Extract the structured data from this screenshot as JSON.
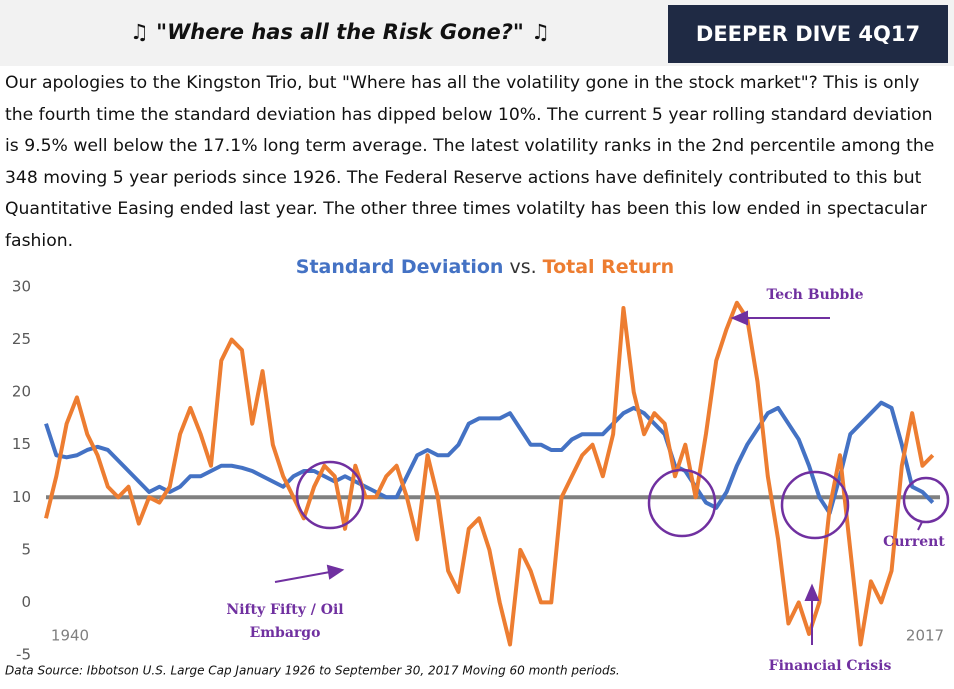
{
  "header": {
    "title": "♫ \"Where has all the Risk Gone?\" ♫",
    "badge": "DEEPER DIVE 4Q17"
  },
  "body_lines": [
    "Our apologies to the Kingston Trio, but \"Where has all the volatility gone in the stock market\"? This is only",
    "the fourth time the standard deviation has dipped below 10%. The current 5 year rolling standard deviation",
    "is 9.5% well below the 17.1% long term average. The latest volatility ranks in the 2nd percentile among the",
    "348 moving 5 year periods since 1926. The Federal Reserve actions have definitely contributed to this but",
    "Quantitative Easing ended last year. The other three times volatilty has been this low ended in spectacular",
    "fashion."
  ],
  "chart_data": {
    "type": "line",
    "title_joiner": "vs.",
    "x": [
      1931,
      1932,
      1933,
      1934,
      1935,
      1936,
      1937,
      1938,
      1939,
      1940,
      1941,
      1942,
      1943,
      1944,
      1945,
      1946,
      1947,
      1948,
      1949,
      1950,
      1951,
      1952,
      1953,
      1954,
      1955,
      1956,
      1957,
      1958,
      1959,
      1960,
      1961,
      1962,
      1963,
      1964,
      1965,
      1966,
      1967,
      1968,
      1969,
      1970,
      1971,
      1972,
      1973,
      1974,
      1975,
      1976,
      1977,
      1978,
      1979,
      1980,
      1981,
      1982,
      1983,
      1984,
      1985,
      1986,
      1987,
      1988,
      1989,
      1990,
      1991,
      1992,
      1993,
      1994,
      1995,
      1996,
      1997,
      1998,
      1999,
      2000,
      2001,
      2002,
      2003,
      2004,
      2005,
      2006,
      2007,
      2008,
      2009,
      2010,
      2011,
      2012,
      2013,
      2014,
      2015,
      2016,
      2017
    ],
    "xlim": [
      1931,
      2017.7
    ],
    "corner_labels": [
      "1940",
      "2017"
    ],
    "series": [
      {
        "name": "Standard Deviation",
        "color": "#4472c4",
        "values": [
          17,
          14,
          13.8,
          14,
          14.5,
          14.8,
          14.5,
          13.5,
          12.5,
          11.5,
          10.5,
          11,
          10.5,
          11,
          12,
          12,
          12.5,
          13,
          13,
          12.8,
          12.5,
          12,
          11.5,
          11,
          12,
          12.5,
          12.5,
          12,
          11.5,
          12,
          11.5,
          11,
          10.5,
          10,
          10,
          12,
          14,
          14.5,
          14,
          14,
          15,
          17,
          17.5,
          17.5,
          17.5,
          18,
          16.5,
          15,
          15,
          14.5,
          14.5,
          15.5,
          16,
          16,
          16,
          17,
          18,
          18.5,
          18,
          17,
          16,
          13,
          12.5,
          11,
          9.5,
          9,
          10.5,
          13,
          15,
          16.5,
          18,
          18.5,
          17,
          15.5,
          13,
          10,
          8.5,
          12,
          16,
          17,
          18,
          19,
          18.5,
          15,
          11,
          10.5,
          9.5
        ]
      },
      {
        "name": "Total Return",
        "color": "#ed7d31",
        "values": [
          8,
          12,
          17,
          19.5,
          16,
          14,
          11,
          10,
          11,
          7.5,
          10,
          9.5,
          11,
          16,
          18.5,
          16,
          13,
          23,
          25,
          24,
          17,
          22,
          15,
          12,
          10,
          8,
          11,
          13,
          12,
          7,
          13,
          10,
          10,
          12,
          13,
          10,
          6,
          14,
          10,
          3,
          1,
          7,
          8,
          5,
          0,
          -4,
          5,
          3,
          0,
          0,
          10,
          12,
          14,
          15,
          12,
          16,
          28,
          20,
          16,
          18,
          17,
          12,
          15,
          10,
          16,
          23,
          26,
          28.5,
          27,
          21,
          12,
          6,
          -2,
          0,
          -3,
          0,
          9,
          14,
          5,
          -4,
          2,
          0,
          3,
          13,
          18,
          13,
          14
        ]
      }
    ],
    "reference_line": {
      "value": 10,
      "color": "#808080"
    },
    "ylim": [
      -5,
      30
    ],
    "yticks": [
      -5,
      0,
      5,
      10,
      15,
      20,
      25,
      30
    ],
    "annotations": [
      "Tech Bubble",
      "Nifty Fifty / Oil",
      "Embargo",
      "Current",
      "Financial Crisis"
    ],
    "source": "Data Source: Ibbotson U.S. Large Cap January 1926 to September 30, 2017 Moving 60 month periods."
  }
}
